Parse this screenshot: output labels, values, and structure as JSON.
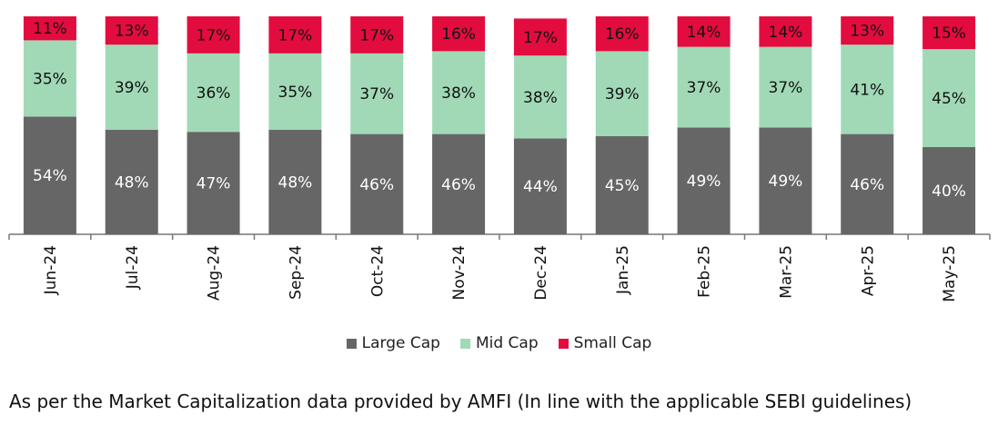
{
  "chart_data": {
    "type": "bar",
    "stacked": true,
    "categories": [
      "Jun-24",
      "Jul-24",
      "Aug-24",
      "Sep-24",
      "Oct-24",
      "Nov-24",
      "Dec-24",
      "Jan-25",
      "Feb-25",
      "Mar-25",
      "Apr-25",
      "May-25"
    ],
    "series": [
      {
        "name": "Large Cap",
        "color": "#666666",
        "values": [
          54,
          48,
          47,
          48,
          46,
          46,
          44,
          45,
          49,
          49,
          46,
          40
        ]
      },
      {
        "name": "Mid Cap",
        "color": "#a1d9b7",
        "values": [
          35,
          39,
          36,
          35,
          37,
          38,
          38,
          39,
          37,
          37,
          41,
          45
        ]
      },
      {
        "name": "Small Cap",
        "color": "#e30c3e",
        "values": [
          11,
          13,
          17,
          17,
          17,
          16,
          17,
          16,
          14,
          14,
          13,
          15
        ]
      }
    ],
    "label_suffix": "%",
    "ylim": [
      0,
      100
    ],
    "grid": false,
    "legend_position": "bottom"
  },
  "footnote": "As per the Market Capitalization data provided by AMFI (In line with the applicable SEBI guidelines)"
}
